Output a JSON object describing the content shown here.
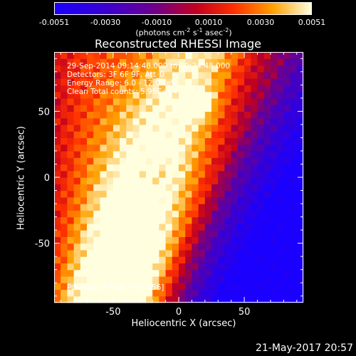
{
  "colorbar": {
    "ticks": [
      "-0.0051",
      "-0.0030",
      "-0.0010",
      "0.0010",
      "0.0030",
      "0.0051"
    ],
    "units_main": "(photons cm",
    "units_exp1": "-2",
    "units_mid1": " s",
    "units_exp2": "-1",
    "units_mid2": " asec",
    "units_exp3": "-2",
    "units_end": ")"
  },
  "chart_data": {
    "type": "heatmap",
    "title": "Reconstructed RHESSI Image",
    "xlabel": "Heliocentric X (arcsec)",
    "ylabel": "Heliocentric Y (arcsec)",
    "xlim": [
      -95,
      95
    ],
    "ylim": [
      -95,
      95
    ],
    "x_ticks": [
      -50,
      0,
      50
    ],
    "y_ticks": [
      -50,
      0,
      50
    ],
    "colorbar_range": [
      -0.0051,
      0.0051
    ],
    "peak_position": [
      15,
      56
    ],
    "annotations": [
      "29-Sep-2014 09:14:48.000 to 09:24:48.000",
      "Detectors: 3F 6F 9F, Att_0",
      "Energy Range: 6.0 - 12.0 keV",
      "Clean     Total counts: 5.98E+04",
      "Position of Peak = [15,56]"
    ]
  },
  "footer": {
    "timestamp": "21-May-2017 20:57"
  }
}
